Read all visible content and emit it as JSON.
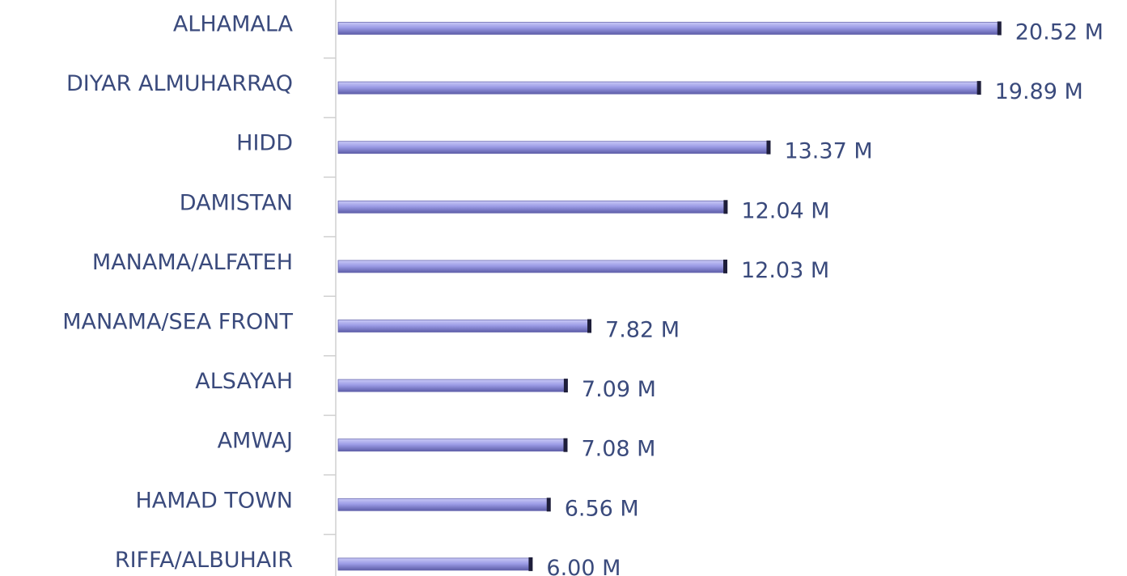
{
  "chart_data": {
    "type": "bar",
    "orientation": "horizontal",
    "categories": [
      "ALHAMALA",
      "DIYAR ALMUHARRAQ",
      "HIDD",
      "DAMISTAN",
      "MANAMA/ALFATEH",
      "MANAMA/SEA FRONT",
      "ALSAYAH",
      "AMWAJ",
      "HAMAD TOWN",
      "RIFFA/ALBUHAIR"
    ],
    "values": [
      20.52,
      19.89,
      13.37,
      12.04,
      12.03,
      7.82,
      7.09,
      7.08,
      6.56,
      6.0
    ],
    "value_labels": [
      "20.52 M",
      "19.89 M",
      "13.37 M",
      "12.04 M",
      "12.03 M",
      "7.82 M",
      "7.09 M",
      "7.08 M",
      "6.56 M",
      "6.00 M"
    ],
    "color": "#9c9ce6"
  }
}
